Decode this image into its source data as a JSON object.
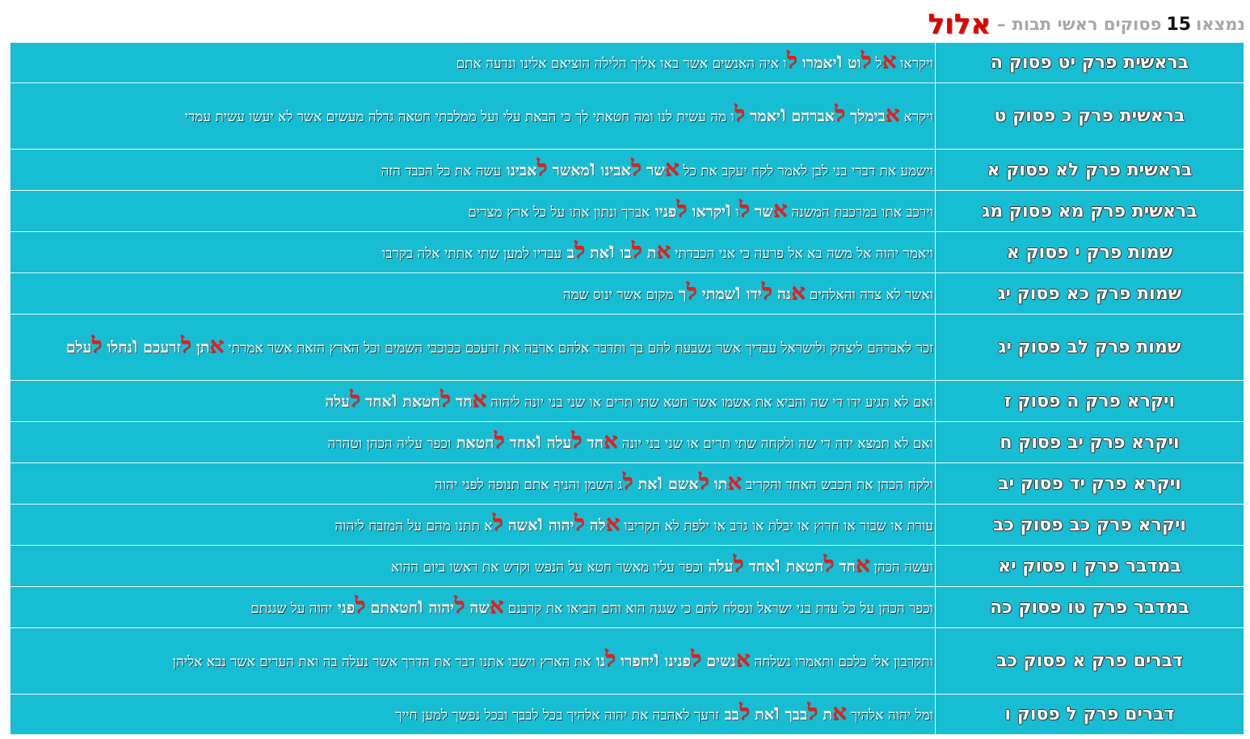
{
  "header": {
    "prefix": "נמצאו",
    "count": "15",
    "label": "פסוקים ראשי תבות",
    "dash": "–",
    "month": "אלול"
  },
  "colors": {
    "cell_bg": "#17bdd3",
    "highlight": "#ff1414",
    "month": "#e00000",
    "header_grey": "#a8a8a8"
  },
  "rows": [
    {
      "ref": "בראשית פרק יט פסוק ה",
      "verse": [
        {
          "t": "ויקראו "
        },
        {
          "t": "א",
          "k": "rs"
        },
        {
          "t": "ל "
        },
        {
          "t": "ל",
          "k": "rs"
        },
        {
          "t": "וט ",
          "k": "rw"
        },
        {
          "t": "ו",
          "k": "vav"
        },
        {
          "t": "יאמרו ",
          "k": "rw"
        },
        {
          "t": "ל",
          "k": "rs"
        },
        {
          "t": "ו איה האנשים אשר באו אליך הלילה הוציאם אלינו ונדעה אתם"
        }
      ]
    },
    {
      "ref": "בראשית פרק כ פסוק ט",
      "verse": [
        {
          "t": "ויקרא "
        },
        {
          "t": "א",
          "k": "rs"
        },
        {
          "t": "בימלך ",
          "k": "rw"
        },
        {
          "t": "ל",
          "k": "rs"
        },
        {
          "t": "אברהם ",
          "k": "rw"
        },
        {
          "t": "ו",
          "k": "vav"
        },
        {
          "t": "יאמר ",
          "k": "rw"
        },
        {
          "t": "ל",
          "k": "rs"
        },
        {
          "t": "ו מה עשית לנו ומה חטאתי לך כי הבאת עלי ועל ממלכתי חטאה גדלה מעשים אשר לא יעשו עשית עמדי"
        }
      ]
    },
    {
      "ref": "בראשית פרק לא פסוק א",
      "verse": [
        {
          "t": "וישמע את דברי בני לבן לאמר לקח יעקב את כל "
        },
        {
          "t": "א",
          "k": "rs"
        },
        {
          "t": "שר ",
          "k": "rw"
        },
        {
          "t": "ל",
          "k": "rs"
        },
        {
          "t": "אבינו ",
          "k": "rw"
        },
        {
          "t": "ו",
          "k": "vav"
        },
        {
          "t": "מאשר ",
          "k": "rw"
        },
        {
          "t": "ל",
          "k": "rs"
        },
        {
          "t": "אבינו ",
          "k": "rw"
        },
        {
          "t": "עשה את כל הכבד הזה"
        }
      ]
    },
    {
      "ref": "בראשית פרק מא פסוק מג",
      "verse": [
        {
          "t": "וירכב אתו במרכבת המשנה "
        },
        {
          "t": "א",
          "k": "rs"
        },
        {
          "t": "שר ",
          "k": "rw"
        },
        {
          "t": "ל",
          "k": "rs"
        },
        {
          "t": "ו "
        },
        {
          "t": "ו",
          "k": "vav"
        },
        {
          "t": "יקראו ",
          "k": "rw"
        },
        {
          "t": "ל",
          "k": "rs"
        },
        {
          "t": "פניו ",
          "k": "rw"
        },
        {
          "t": "אברך ונתון אתו על כל ארץ מצרים"
        }
      ]
    },
    {
      "ref": "שמות פרק י פסוק א",
      "verse": [
        {
          "t": "ויאמר יהוה אל משה בא אל פרעה כי אני הכבדתי "
        },
        {
          "t": "א",
          "k": "rs"
        },
        {
          "t": "ת ",
          "k": "rw"
        },
        {
          "t": "ל",
          "k": "rs"
        },
        {
          "t": "בו ",
          "k": "rw"
        },
        {
          "t": "ו",
          "k": "vav"
        },
        {
          "t": "את ",
          "k": "rw"
        },
        {
          "t": "ל",
          "k": "rs"
        },
        {
          "t": "ב ",
          "k": "rw"
        },
        {
          "t": "עבדיו למען שתי אתתי אלה בקרבו"
        }
      ]
    },
    {
      "ref": "שמות פרק כא פסוק יג",
      "verse": [
        {
          "t": "ואשר לא צדה והאלהים "
        },
        {
          "t": "א",
          "k": "rs"
        },
        {
          "t": "נה ",
          "k": "rw"
        },
        {
          "t": "ל",
          "k": "rs"
        },
        {
          "t": "ידו ",
          "k": "rw"
        },
        {
          "t": "ו",
          "k": "vav"
        },
        {
          "t": "שמתי ",
          "k": "rw"
        },
        {
          "t": "ל",
          "k": "rs"
        },
        {
          "t": "ך ",
          "k": "rw"
        },
        {
          "t": "מקום אשר ינוס שמה"
        }
      ]
    },
    {
      "ref": "שמות פרק לב פסוק יג",
      "verse": [
        {
          "t": "זכר לאברהם ליצחק ולישראל עבדיך אשר נשבעת להם בך ותדבר אלהם ארבה את זרעכם ככוכבי השמים וכל הארץ הזאת אשר אמרתי "
        },
        {
          "t": "א",
          "k": "rs"
        },
        {
          "t": "תן ",
          "k": "rw"
        },
        {
          "t": "ל",
          "k": "rs"
        },
        {
          "t": "זרעכם ",
          "k": "rw"
        },
        {
          "t": "ו",
          "k": "vav"
        },
        {
          "t": "נחלו ",
          "k": "rw"
        },
        {
          "t": "ל",
          "k": "rs"
        },
        {
          "t": "עלם",
          "k": "rw"
        }
      ]
    },
    {
      "ref": "ויקרא פרק ה פסוק ז",
      "verse": [
        {
          "t": "ואם לא תגיע ידו די שה והביא את אשמו אשר חטא שתי תרים או שני בני יונה ליהוה "
        },
        {
          "t": "א",
          "k": "rs"
        },
        {
          "t": "חד ",
          "k": "rw"
        },
        {
          "t": "ל",
          "k": "rs"
        },
        {
          "t": "חטאת ",
          "k": "rw"
        },
        {
          "t": "ו",
          "k": "vav"
        },
        {
          "t": "אחד ",
          "k": "rw"
        },
        {
          "t": "ל",
          "k": "rs"
        },
        {
          "t": "עלה",
          "k": "rw"
        }
      ]
    },
    {
      "ref": "ויקרא פרק יב פסוק ח",
      "verse": [
        {
          "t": "ואם לא תמצא ידה די שה ולקחה שתי תרים או שני בני יונה "
        },
        {
          "t": "א",
          "k": "rs"
        },
        {
          "t": "חד ",
          "k": "rw"
        },
        {
          "t": "ל",
          "k": "rs"
        },
        {
          "t": "עלה ",
          "k": "rw"
        },
        {
          "t": "ו",
          "k": "vav"
        },
        {
          "t": "אחד ",
          "k": "rw"
        },
        {
          "t": "ל",
          "k": "rs"
        },
        {
          "t": "חטאת ",
          "k": "rw"
        },
        {
          "t": "וכפר עליה הכהן וטהרה"
        }
      ]
    },
    {
      "ref": "ויקרא פרק יד פסוק יב",
      "verse": [
        {
          "t": "ולקח הכהן את הכבש האחד והקריב "
        },
        {
          "t": "א",
          "k": "rs"
        },
        {
          "t": "תו ",
          "k": "rw"
        },
        {
          "t": "ל",
          "k": "rs"
        },
        {
          "t": "אשם ",
          "k": "rw"
        },
        {
          "t": "ו",
          "k": "vav"
        },
        {
          "t": "את ",
          "k": "rw"
        },
        {
          "t": "ל",
          "k": "rs"
        },
        {
          "t": "ג השמן והניף אתם תנופה לפני יהוה"
        }
      ]
    },
    {
      "ref": "ויקרא פרק כב פסוק כב",
      "verse": [
        {
          "t": "עורת או שבור או חרוץ או יבלת או גרב או ילפת לא תקריבו "
        },
        {
          "t": "א",
          "k": "rs"
        },
        {
          "t": "לה ",
          "k": "rw"
        },
        {
          "t": "ל",
          "k": "rs"
        },
        {
          "t": "יהוה ",
          "k": "rw"
        },
        {
          "t": "ו",
          "k": "vav"
        },
        {
          "t": "אשה ",
          "k": "rw"
        },
        {
          "t": "ל",
          "k": "rs"
        },
        {
          "t": "א תתנו מהם על המזבח ליהוה"
        }
      ]
    },
    {
      "ref": "במדבר פרק ו פסוק יא",
      "verse": [
        {
          "t": "ועשה הכהן "
        },
        {
          "t": "א",
          "k": "rs"
        },
        {
          "t": "חד ",
          "k": "rw"
        },
        {
          "t": "ל",
          "k": "rs"
        },
        {
          "t": "חטאת ",
          "k": "rw"
        },
        {
          "t": "ו",
          "k": "vav"
        },
        {
          "t": "אחד ",
          "k": "rw"
        },
        {
          "t": "ל",
          "k": "rs"
        },
        {
          "t": "עלה ",
          "k": "rw"
        },
        {
          "t": "וכפר עליו מאשר חטא על הנפש וקדש את ראשו ביום ההוא"
        }
      ]
    },
    {
      "ref": "במדבר פרק טו פסוק כה",
      "verse": [
        {
          "t": "וכפר הכהן על כל עדת בני ישראל ונסלח להם כי שגגה הוא והם הביאו את קרבנם "
        },
        {
          "t": "א",
          "k": "rs"
        },
        {
          "t": "שה ",
          "k": "rw"
        },
        {
          "t": "ל",
          "k": "rs"
        },
        {
          "t": "יהוה ",
          "k": "rw"
        },
        {
          "t": "ו",
          "k": "vav"
        },
        {
          "t": "חטאתם ",
          "k": "rw"
        },
        {
          "t": "ל",
          "k": "rs"
        },
        {
          "t": "פני ",
          "k": "rw"
        },
        {
          "t": "יהוה על שגגתם"
        }
      ]
    },
    {
      "ref": "דברים פרק א פסוק כב",
      "verse": [
        {
          "t": "ותקרבון אלי כלכם ותאמרו נשלחה "
        },
        {
          "t": "א",
          "k": "rs"
        },
        {
          "t": "נשים ",
          "k": "rw"
        },
        {
          "t": "ל",
          "k": "rs"
        },
        {
          "t": "פנינו ",
          "k": "rw"
        },
        {
          "t": "ו",
          "k": "vav"
        },
        {
          "t": "יחפרו ",
          "k": "rw"
        },
        {
          "t": "ל",
          "k": "rs"
        },
        {
          "t": "נו ",
          "k": "rw"
        },
        {
          "t": "את הארץ וישבו אתנו דבר את הדרך אשר נעלה בה ואת הערים אשר נבא אליהן"
        }
      ]
    },
    {
      "ref": "דברים פרק ל פסוק ו",
      "verse": [
        {
          "t": "ומל יהוה אלהיך "
        },
        {
          "t": "א",
          "k": "rs"
        },
        {
          "t": "ת ",
          "k": "rw"
        },
        {
          "t": "ל",
          "k": "rs"
        },
        {
          "t": "בבך ",
          "k": "rw"
        },
        {
          "t": "ו",
          "k": "vav"
        },
        {
          "t": "את ",
          "k": "rw"
        },
        {
          "t": "ל",
          "k": "rs"
        },
        {
          "t": "בב ",
          "k": "rw"
        },
        {
          "t": "זרעך לאהבה את יהוה אלהיך בכל לבבך ובכל נפשך למען חייך"
        }
      ]
    }
  ]
}
